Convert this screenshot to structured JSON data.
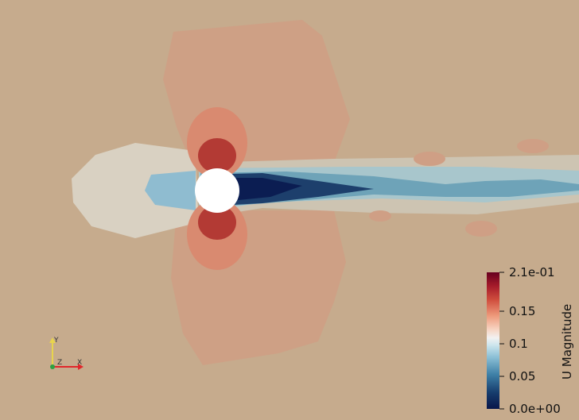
{
  "colors": {
    "background": "#c6ab8d",
    "cylinder": "#ffffff",
    "high": "#67001f",
    "mid": "#f2f1f1",
    "low": "#08164a"
  },
  "colorbar": {
    "title": "U Magnitude",
    "ticks": [
      "2.1e-01",
      "0.15",
      "0.1",
      "0.05",
      "0.0e+00"
    ],
    "tick_values": [
      0.21,
      0.15,
      0.1,
      0.05,
      0.0
    ],
    "range": [
      0.0,
      0.21
    ]
  },
  "axes_widget": {
    "x_label": "X",
    "y_label": "Y",
    "z_label": "Z",
    "x_color": "#e0262b",
    "y_color": "#e8d44d",
    "z_color": "#2ea043"
  }
}
